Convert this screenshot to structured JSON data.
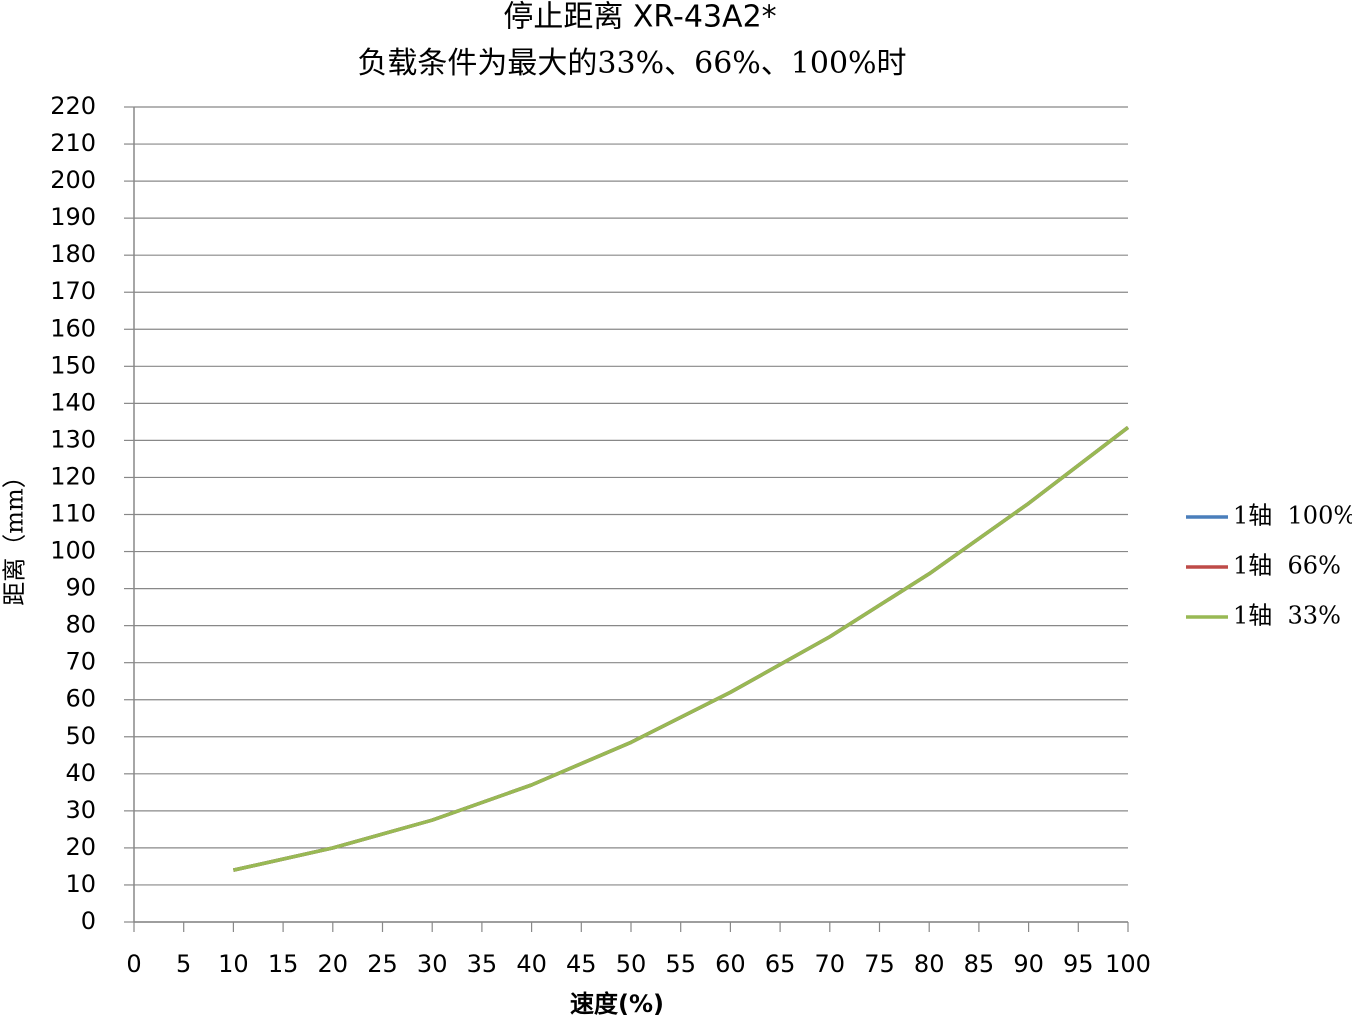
{
  "chart_data": {
    "type": "line",
    "title": "停止距离 XR-43A2*",
    "subtitle": "负载条件为最大的33%、66%、100%时",
    "x_label": "速度(%)",
    "y_label": "距离（mm）",
    "x": [
      10,
      20,
      30,
      40,
      50,
      60,
      70,
      80,
      90,
      100
    ],
    "series": [
      {
        "name": "1轴  100%",
        "color": "#4a7ebb",
        "values": [
          14,
          20,
          27.5,
          37,
          48.5,
          62,
          77,
          94,
          113,
          133.5
        ]
      },
      {
        "name": "1轴  66%",
        "color": "#be4b48",
        "values": [
          14,
          20,
          27.5,
          37,
          48.5,
          62,
          77,
          94,
          113,
          133.5
        ]
      },
      {
        "name": "1轴  33%",
        "color": "#98b954",
        "values": [
          14,
          20,
          27.5,
          37,
          48.5,
          62,
          77,
          94,
          113,
          133.5
        ]
      }
    ],
    "xlim": [
      0,
      100
    ],
    "xticks": [
      0,
      5,
      10,
      15,
      20,
      25,
      30,
      35,
      40,
      45,
      50,
      55,
      60,
      65,
      70,
      75,
      80,
      85,
      90,
      95,
      100
    ],
    "ylim": [
      0,
      220
    ],
    "yticks": [
      0,
      10,
      20,
      30,
      40,
      50,
      60,
      70,
      80,
      90,
      100,
      110,
      120,
      130,
      140,
      150,
      160,
      170,
      180,
      190,
      200,
      210,
      220
    ],
    "grid": true,
    "legend": "right"
  }
}
